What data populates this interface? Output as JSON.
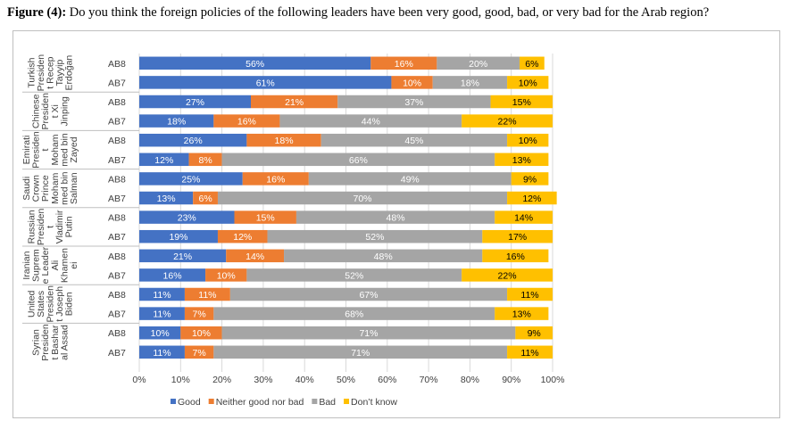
{
  "figure": {
    "label": "Figure (4):",
    "question": " Do you think the foreign policies of the following leaders have been very good, good, bad, or very bad for the Arab region?"
  },
  "chart_data": {
    "type": "bar",
    "orientation": "horizontal",
    "stacked": "percent",
    "xlim": [
      0,
      100
    ],
    "x_ticks": [
      "0%",
      "10%",
      "20%",
      "30%",
      "40%",
      "50%",
      "60%",
      "70%",
      "80%",
      "90%",
      "100%"
    ],
    "grid": true,
    "legend": "bottom",
    "series": [
      {
        "name": "Good",
        "color": "#4472c4"
      },
      {
        "name": "Neither good nor bad",
        "color": "#ed7d31"
      },
      {
        "name": "Bad",
        "color": "#a5a5a5"
      },
      {
        "name": "Don’t know",
        "color": "#ffc000"
      }
    ],
    "groups": [
      {
        "label_lines": [
          "Turkish",
          "Presiden",
          "t Recep",
          "Tayyip",
          "Erdoğan"
        ],
        "bars": [
          {
            "category": "AB8",
            "values": [
              56,
              16,
              20,
              6
            ],
            "labels": [
              "56%",
              "16%",
              "20%",
              "6%"
            ]
          },
          {
            "category": "AB7",
            "values": [
              61,
              10,
              18,
              10
            ],
            "labels": [
              "61%",
              "10%",
              "18%",
              "10%"
            ]
          }
        ]
      },
      {
        "label_lines": [
          "Chinese",
          "Presiden",
          "t Xi",
          "Jinping"
        ],
        "bars": [
          {
            "category": "AB8",
            "values": [
              27,
              21,
              37,
              15
            ],
            "labels": [
              "27%",
              "21%",
              "37%",
              "15%"
            ]
          },
          {
            "category": "AB7",
            "values": [
              18,
              16,
              44,
              22
            ],
            "labels": [
              "18%",
              "16%",
              "44%",
              "22%"
            ]
          }
        ]
      },
      {
        "label_lines": [
          "Emirati",
          "Presiden",
          "t",
          "Moham",
          "med bin",
          "Zayed"
        ],
        "bars": [
          {
            "category": "AB8",
            "values": [
              26,
              18,
              45,
              10
            ],
            "labels": [
              "26%",
              "18%",
              "45%",
              "10%"
            ]
          },
          {
            "category": "AB7",
            "values": [
              12,
              8,
              66,
              13
            ],
            "labels": [
              "12%",
              "8%",
              "66%",
              "13%"
            ]
          }
        ]
      },
      {
        "label_lines": [
          "Saudi",
          "Crown",
          "Prince",
          "Moham",
          "med bin",
          "Salman"
        ],
        "bars": [
          {
            "category": "AB8",
            "values": [
              25,
              16,
              49,
              9
            ],
            "labels": [
              "25%",
              "16%",
              "49%",
              "9%"
            ]
          },
          {
            "category": "AB7",
            "values": [
              13,
              6,
              70,
              12
            ],
            "labels": [
              "13%",
              "6%",
              "70%",
              "12%"
            ]
          }
        ]
      },
      {
        "label_lines": [
          "Russian",
          "Presiden",
          "t",
          "Vladimir",
          "Putin"
        ],
        "bars": [
          {
            "category": "AB8",
            "values": [
              23,
              15,
              48,
              14
            ],
            "labels": [
              "23%",
              "15%",
              "48%",
              "14%"
            ]
          },
          {
            "category": "AB7",
            "values": [
              19,
              12,
              52,
              17
            ],
            "labels": [
              "19%",
              "12%",
              "52%",
              "17%"
            ]
          }
        ]
      },
      {
        "label_lines": [
          "Iranian",
          "Suprem",
          "e Leader",
          "Ali",
          "Khamen",
          "ei"
        ],
        "bars": [
          {
            "category": "AB8",
            "values": [
              21,
              14,
              48,
              16
            ],
            "labels": [
              "21%",
              "14%",
              "48%",
              "16%"
            ]
          },
          {
            "category": "AB7",
            "values": [
              16,
              10,
              52,
              22
            ],
            "labels": [
              "16%",
              "10%",
              "52%",
              "22%"
            ]
          }
        ]
      },
      {
        "label_lines": [
          "United",
          "States",
          "Presiden",
          "t Joseph",
          "Biden"
        ],
        "bars": [
          {
            "category": "AB8",
            "values": [
              11,
              11,
              67,
              11
            ],
            "labels": [
              "11%",
              "11%",
              "67%",
              "11%"
            ]
          },
          {
            "category": "AB7",
            "values": [
              11,
              7,
              68,
              13
            ],
            "labels": [
              "11%",
              "7%",
              "68%",
              "13%"
            ]
          }
        ]
      },
      {
        "label_lines": [
          "Syrian",
          "Presiden",
          "t Bashar",
          "al Assad"
        ],
        "bars": [
          {
            "category": "AB8",
            "values": [
              10,
              10,
              71,
              9
            ],
            "labels": [
              "10%",
              "10%",
              "71%",
              "9%"
            ]
          },
          {
            "category": "AB7",
            "values": [
              11,
              7,
              71,
              11
            ],
            "labels": [
              "11%",
              "7%",
              "71%",
              "11%"
            ]
          }
        ]
      }
    ]
  }
}
